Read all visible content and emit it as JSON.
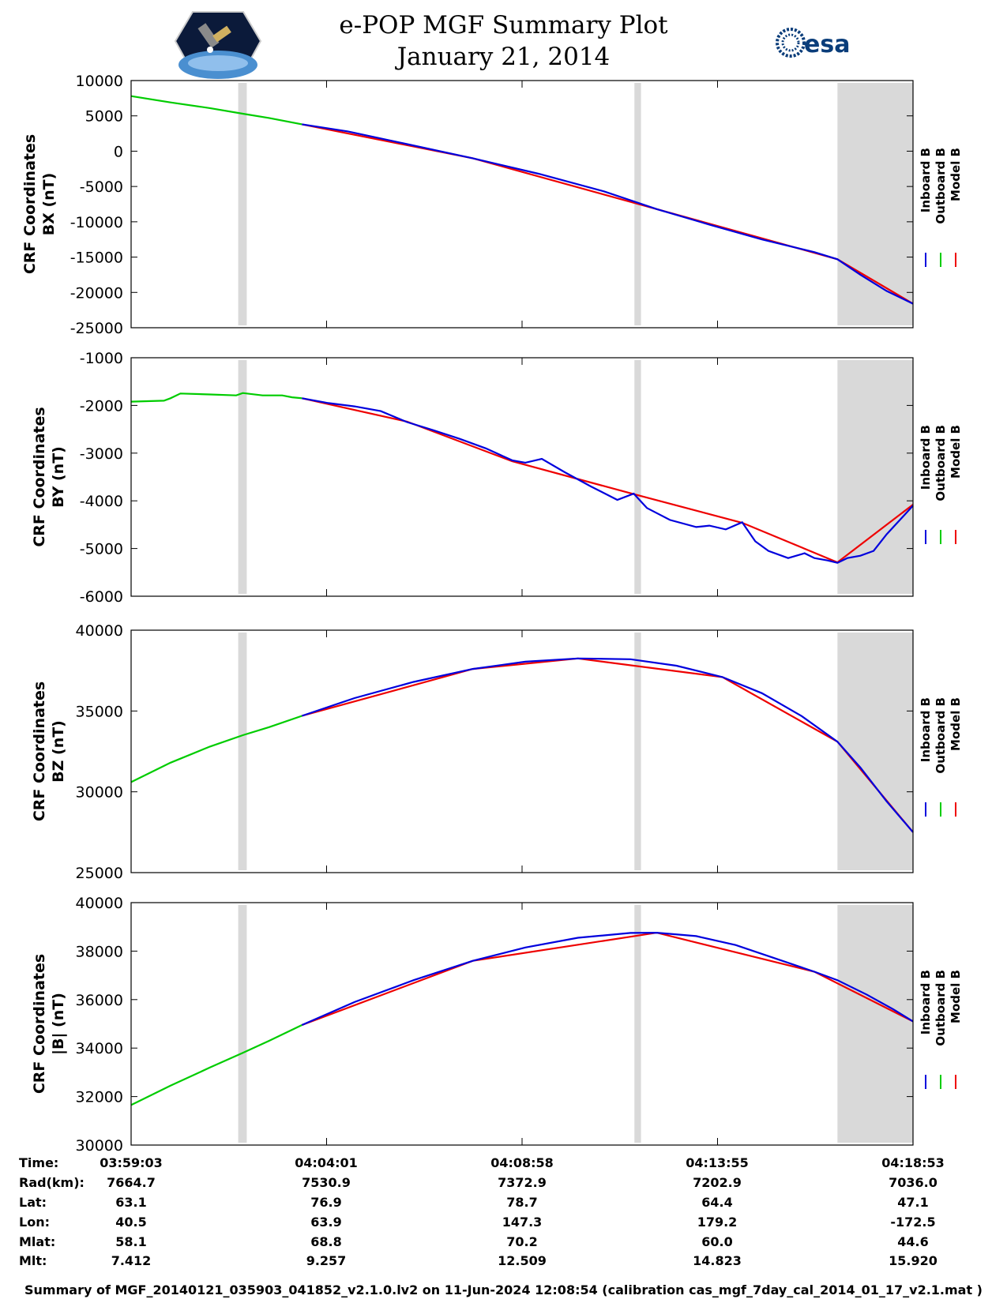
{
  "title_line1": "e-POP MGF Summary Plot",
  "title_line2": "January 21, 2014",
  "logo_left": "satellite mission logo",
  "logo_right_text": "esa",
  "footer": "Summary of MGF_20140121_035903_041852_v2.1.0.lv2 on 11-Jun-2024 12:08:54 (calibration cas_mgf_7day_cal_2014_01_17_v2.1.mat )",
  "colors": {
    "inboard": "#0000dd",
    "outboard": "#00cc00",
    "model": "#ee0000",
    "gap": "#d9d9d9"
  },
  "info_table": {
    "row_labels": [
      "Time:",
      "Rad(km):",
      "Lat:",
      "Lon:",
      "Mlat:",
      "Mlt:"
    ],
    "columns": [
      [
        "03:59:03",
        "7664.7",
        "63.1",
        "40.5",
        "58.1",
        "7.412"
      ],
      [
        "04:04:01",
        "7530.9",
        "76.9",
        "63.9",
        "68.8",
        "9.257"
      ],
      [
        "04:08:58",
        "7372.9",
        "78.7",
        "147.3",
        "70.2",
        "12.509"
      ],
      [
        "04:13:55",
        "7202.9",
        "64.4",
        "179.2",
        "60.0",
        "14.823"
      ],
      [
        "04:18:53",
        "7036.0",
        "47.1",
        "-172.5",
        "44.6",
        "15.920"
      ]
    ]
  },
  "chart_data": [
    {
      "type": "line",
      "ylabel": [
        "CRF Coordinates",
        "BX (nT)"
      ],
      "ylim": [
        -25000,
        10000
      ],
      "yticks": [
        "10000",
        "5000",
        "0",
        "-5000",
        "-10000",
        "-15000",
        "-20000",
        "-25000"
      ],
      "xlim": [
        0,
        1190
      ],
      "xticks_time": [
        "03:59:03",
        "04:04:01",
        "04:08:58",
        "04:13:55",
        "04:18:53"
      ],
      "legend": [
        "Inboard B",
        "Outboard B",
        "Model B"
      ],
      "legend_position": "right",
      "shaded_intervals_s": [
        [
          163,
          176
        ],
        [
          766,
          776
        ],
        [
          1075,
          1190
        ]
      ],
      "series": [
        {
          "name": "Outboard B",
          "color_key": "outboard",
          "x": [
            0,
            60,
            120,
            170,
            210,
            260
          ],
          "y": [
            7800,
            6900,
            6100,
            5300,
            4700,
            3800
          ]
        },
        {
          "name": "Inboard B",
          "color_key": "inboard",
          "x": [
            260,
            330,
            420,
            520,
            620,
            720,
            800,
            880,
            960,
            1040,
            1075,
            1110,
            1150,
            1190
          ],
          "y": [
            3800,
            2800,
            1000,
            -1000,
            -3200,
            -5700,
            -8200,
            -10400,
            -12500,
            -14300,
            -15300,
            -17500,
            -19800,
            -21600
          ]
        },
        {
          "name": "Model B",
          "color_key": "model",
          "x": [
            260,
            520,
            800,
            1075,
            1190
          ],
          "y": [
            3800,
            -1000,
            -8200,
            -15300,
            -21600
          ]
        }
      ]
    },
    {
      "type": "line",
      "ylabel": [
        "CRF Coordinates",
        "BY (nT)"
      ],
      "ylim": [
        -6000,
        -1000
      ],
      "yticks": [
        "-1000",
        "-2000",
        "-3000",
        "-4000",
        "-5000",
        "-6000"
      ],
      "xlim": [
        0,
        1190
      ],
      "legend": [
        "Inboard B",
        "Outboard B",
        "Model B"
      ],
      "legend_position": "right",
      "shaded_intervals_s": [
        [
          163,
          176
        ],
        [
          766,
          776
        ],
        [
          1075,
          1190
        ]
      ],
      "series": [
        {
          "name": "Outboard B",
          "color_key": "outboard",
          "x": [
            0,
            50,
            60,
            75,
            120,
            160,
            170,
            200,
            230,
            245,
            260
          ],
          "y": [
            -1920,
            -1900,
            -1850,
            -1750,
            -1770,
            -1790,
            -1740,
            -1790,
            -1790,
            -1830,
            -1850
          ]
        },
        {
          "name": "Inboard B",
          "color_key": "inboard",
          "x": [
            260,
            300,
            340,
            380,
            420,
            460,
            500,
            540,
            580,
            600,
            625,
            660,
            700,
            740,
            765,
            785,
            820,
            860,
            880,
            905,
            930,
            950,
            970,
            1000,
            1025,
            1040,
            1060,
            1075,
            1090,
            1110,
            1130,
            1150,
            1170,
            1190
          ],
          "y": [
            -1850,
            -1950,
            -2020,
            -2120,
            -2350,
            -2520,
            -2700,
            -2900,
            -3150,
            -3200,
            -3120,
            -3400,
            -3700,
            -3980,
            -3850,
            -4150,
            -4400,
            -4550,
            -4520,
            -4600,
            -4450,
            -4850,
            -5050,
            -5200,
            -5100,
            -5200,
            -5250,
            -5300,
            -5200,
            -5150,
            -5050,
            -4700,
            -4400,
            -4100
          ]
        },
        {
          "name": "Model B",
          "color_key": "model",
          "x": [
            260,
            420,
            580,
            765,
            930,
            1075,
            1190
          ],
          "y": [
            -1850,
            -2340,
            -3170,
            -3860,
            -4460,
            -5290,
            -4080
          ]
        }
      ]
    },
    {
      "type": "line",
      "ylabel": [
        "CRF Coordinates",
        "BZ (nT)"
      ],
      "ylim": [
        25000,
        40000
      ],
      "yticks": [
        "40000",
        "35000",
        "30000",
        "25000"
      ],
      "xlim": [
        0,
        1190
      ],
      "legend": [
        "Inboard B",
        "Outboard B",
        "Model B"
      ],
      "legend_position": "right",
      "shaded_intervals_s": [
        [
          163,
          176
        ],
        [
          766,
          776
        ],
        [
          1075,
          1190
        ]
      ],
      "series": [
        {
          "name": "Outboard B",
          "color_key": "outboard",
          "x": [
            0,
            60,
            120,
            170,
            210,
            260
          ],
          "y": [
            30600,
            31800,
            32800,
            33500,
            34000,
            34700
          ]
        },
        {
          "name": "Inboard B",
          "color_key": "inboard",
          "x": [
            260,
            340,
            430,
            520,
            600,
            680,
            760,
            830,
            900,
            960,
            1020,
            1075,
            1110,
            1150,
            1190
          ],
          "y": [
            34700,
            35800,
            36800,
            37600,
            38050,
            38250,
            38200,
            37800,
            37100,
            36100,
            34700,
            33100,
            31500,
            29400,
            27500
          ]
        },
        {
          "name": "Model B",
          "color_key": "model",
          "x": [
            260,
            520,
            680,
            900,
            1075,
            1190
          ],
          "y": [
            34700,
            37600,
            38250,
            37100,
            33100,
            27500
          ]
        }
      ]
    },
    {
      "type": "line",
      "ylabel": [
        "CRF Coordinates",
        "|B| (nT)"
      ],
      "ylim": [
        30000,
        40000
      ],
      "yticks": [
        "40000",
        "38000",
        "36000",
        "34000",
        "32000",
        "30000"
      ],
      "xlim": [
        0,
        1190
      ],
      "legend": [
        "Inboard B",
        "Outboard B",
        "Model B"
      ],
      "legend_position": "right",
      "shaded_intervals_s": [
        [
          163,
          176
        ],
        [
          766,
          776
        ],
        [
          1075,
          1190
        ]
      ],
      "series": [
        {
          "name": "Outboard B",
          "color_key": "outboard",
          "x": [
            0,
            60,
            120,
            170,
            210,
            260
          ],
          "y": [
            31650,
            32450,
            33200,
            33800,
            34300,
            34950
          ]
        },
        {
          "name": "Inboard B",
          "color_key": "inboard",
          "x": [
            260,
            340,
            430,
            520,
            600,
            680,
            760,
            800,
            860,
            920,
            980,
            1040,
            1075,
            1120,
            1160,
            1190
          ],
          "y": [
            34950,
            35900,
            36800,
            37600,
            38150,
            38550,
            38750,
            38760,
            38620,
            38250,
            37700,
            37150,
            36800,
            36200,
            35600,
            35100
          ]
        },
        {
          "name": "Model B",
          "color_key": "model",
          "x": [
            260,
            520,
            800,
            1040,
            1190
          ],
          "y": [
            34950,
            37600,
            38760,
            37150,
            35100
          ]
        }
      ]
    }
  ]
}
